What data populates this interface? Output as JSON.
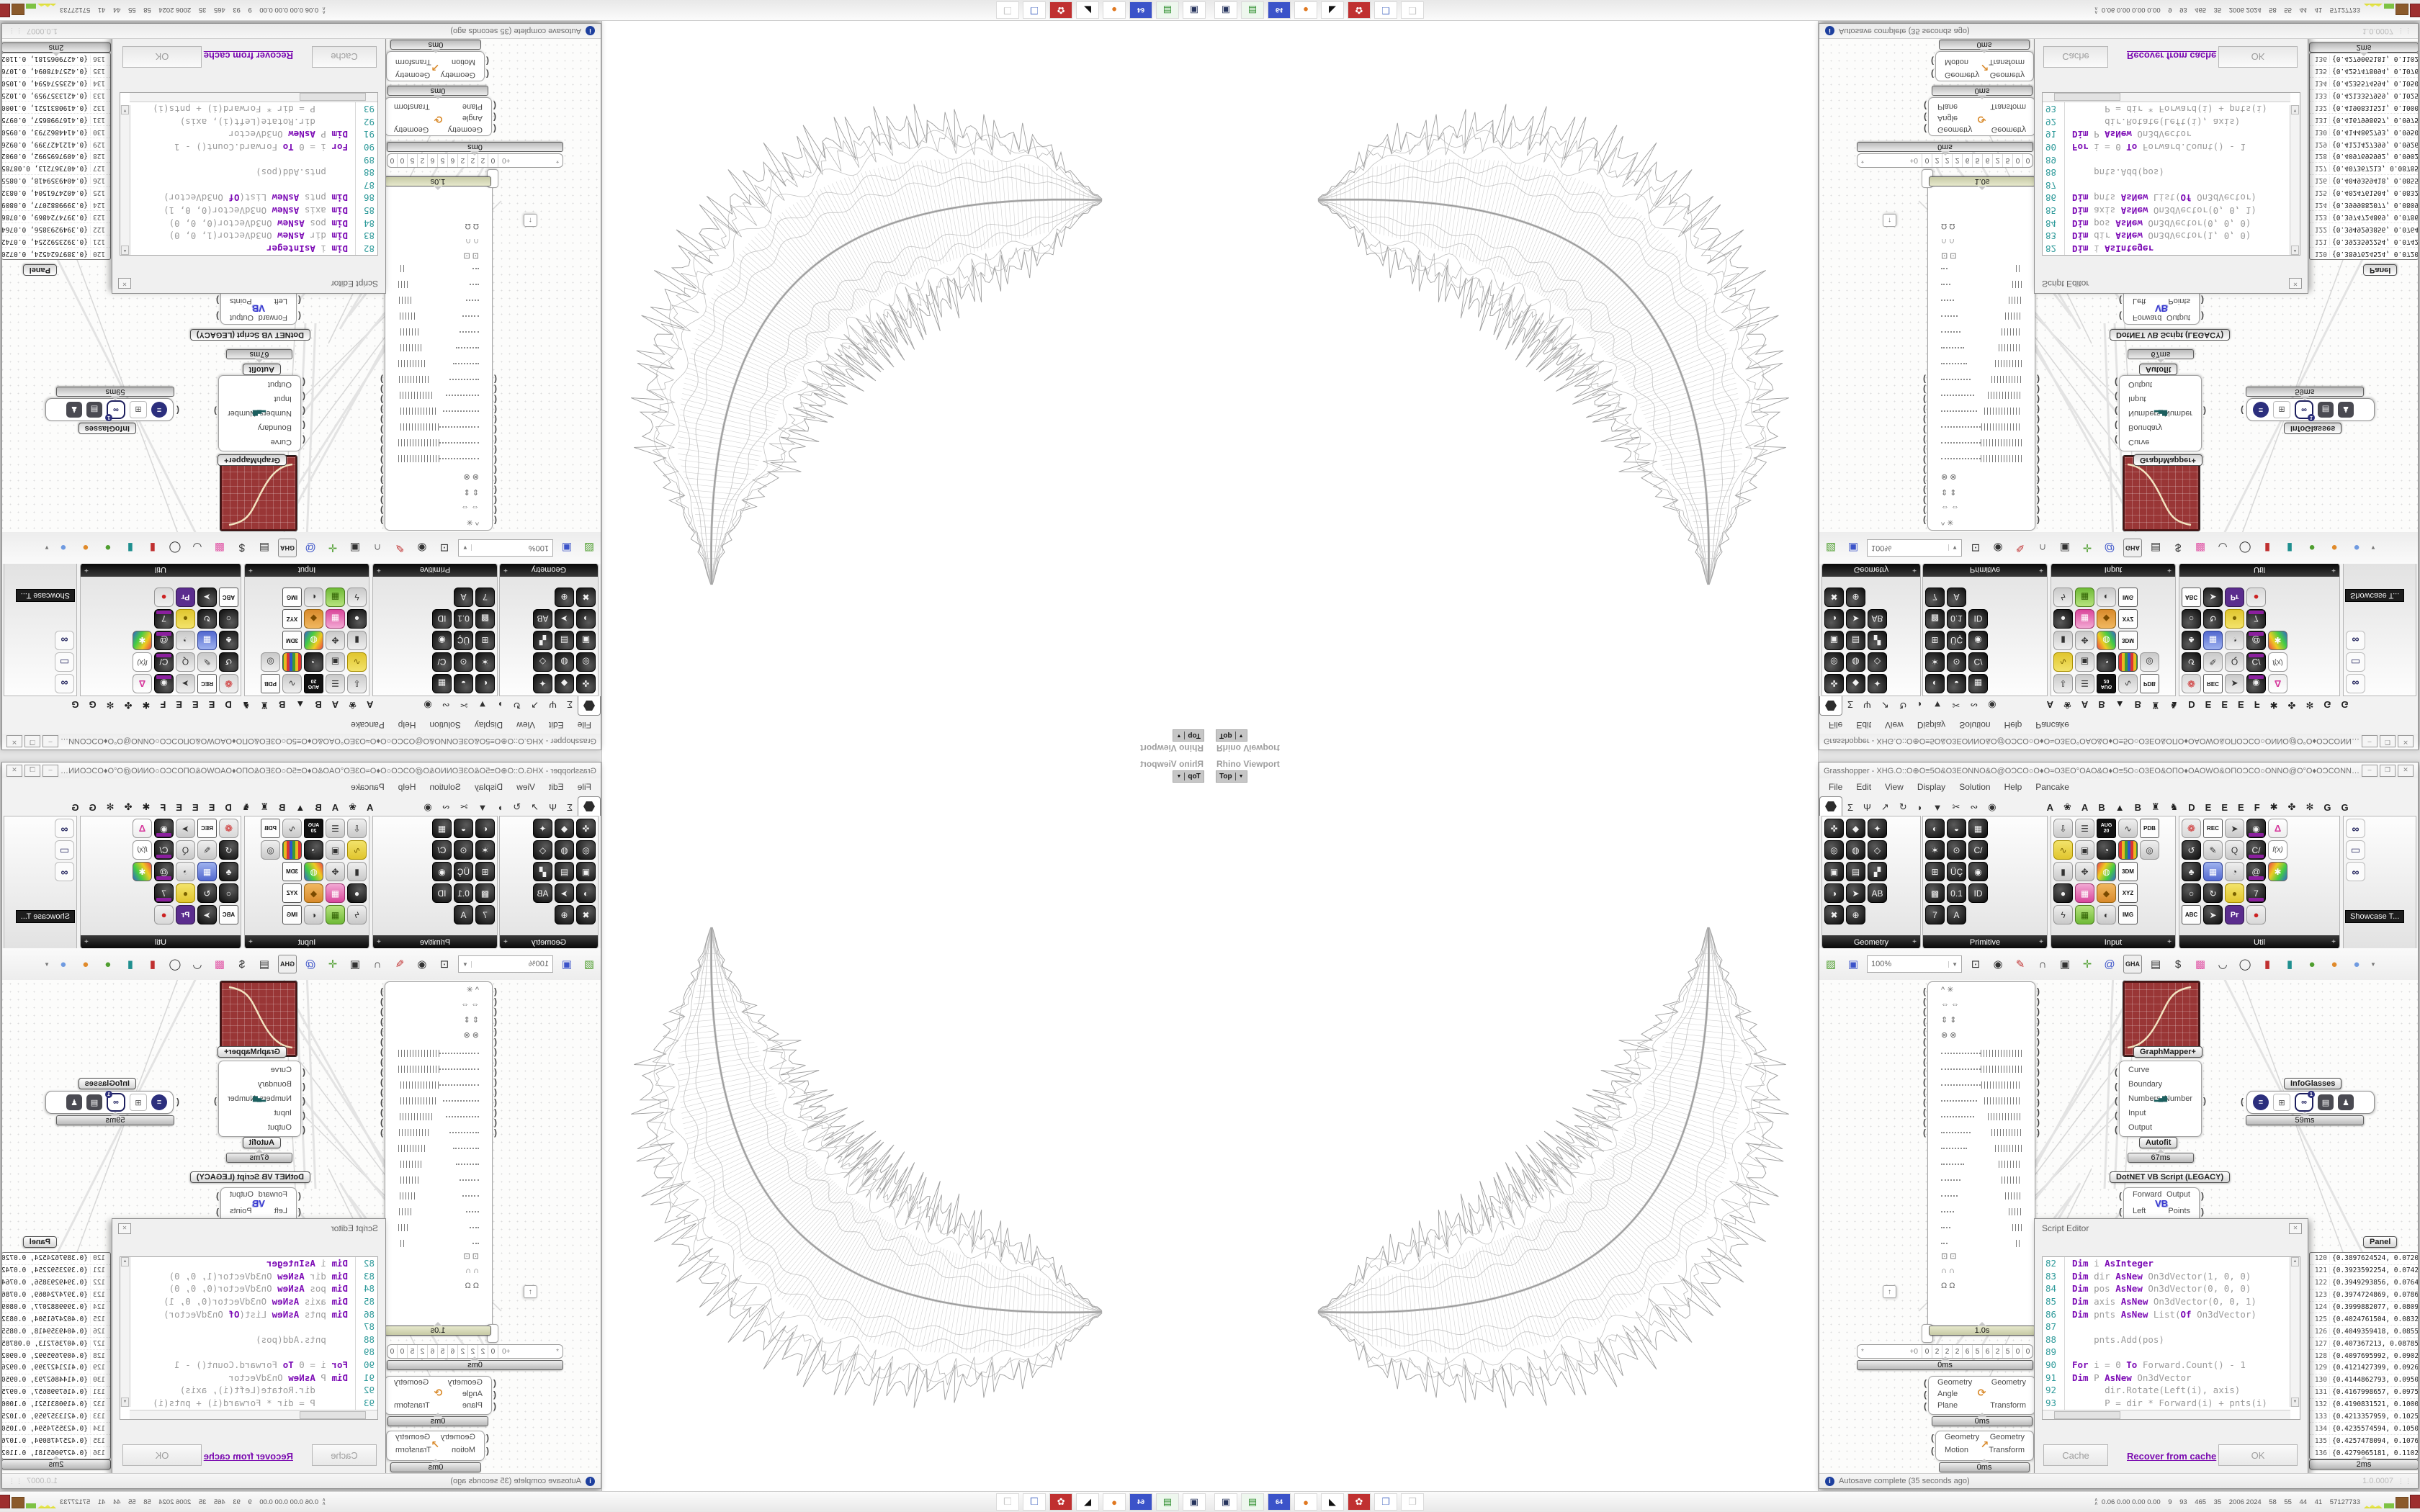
{
  "window": {
    "title": "Grasshopper - XHG.O::O⊕O≡5O&O3EONNO&O@OƆCO○O♦O≈O3EO°OAO&O♦O≡5O○O3EO&OΠO♦OAOWO&OΠOƆCO○ONNO@O°O♦OƆCONNOΠO÷O○O≡5OΠO°O=...",
    "minimize": "–",
    "maximize": "❐",
    "close": "✕"
  },
  "menu": [
    "File",
    "Edit",
    "View",
    "Display",
    "Solution",
    "Help",
    "Pancake"
  ],
  "tabs": {
    "left": [
      "Σ",
      "Ψ",
      "↗",
      "↻",
      "◗",
      "▼",
      "✂",
      "∾",
      "◉"
    ],
    "right": [
      "A",
      "❀",
      "A",
      "B",
      "▲",
      "B",
      "♜",
      "♞",
      "D",
      "E",
      "E",
      "E",
      "F",
      "✱",
      "✤",
      "✻",
      "G",
      "G"
    ]
  },
  "palettes": [
    {
      "name": "Geometry",
      "plus": "+",
      "icons": [
        {
          "n": "vector-icon",
          "g": "✜"
        },
        {
          "n": "point-icon",
          "g": "◎"
        },
        {
          "n": "box-icon",
          "g": "▣"
        },
        {
          "n": "sphere-icon",
          "g": "◑"
        },
        {
          "n": "xyz-icon",
          "g": "✖"
        },
        {
          "n": "curve-icon",
          "g": "◆"
        },
        {
          "n": "mesh-icon",
          "g": "◍"
        },
        {
          "n": "surface-icon",
          "g": "▤"
        },
        {
          "n": "arrow-icon",
          "g": "➤"
        },
        {
          "n": "circle-icon",
          "g": "⊕"
        },
        {
          "n": "spiral-icon",
          "g": "✦"
        },
        {
          "n": "plane-icon",
          "g": "◇"
        },
        {
          "n": "patch-icon",
          "g": "▞"
        },
        {
          "n": "abc-icon",
          "g": "AB"
        }
      ]
    },
    {
      "name": "Primitive",
      "plus": "+",
      "icons": [
        {
          "n": "half-icon",
          "g": "◐"
        },
        {
          "n": "burst-icon",
          "g": "✶"
        },
        {
          "n": "grid-icon",
          "g": "⊞"
        },
        {
          "n": "shade-icon",
          "g": "▩"
        },
        {
          "n": "seven-icon",
          "g": "7"
        },
        {
          "n": "swirl-icon",
          "g": "◒"
        },
        {
          "n": "clock-icon",
          "g": "⊙"
        },
        {
          "n": "uc-icon",
          "g": "ÜÇ"
        },
        {
          "n": "decimal-icon",
          "g": "0.1"
        },
        {
          "n": "text-icon",
          "g": "A"
        },
        {
          "n": "hatch-icon",
          "g": "▦"
        },
        {
          "n": "cpath-icon",
          "g": "C/"
        },
        {
          "n": "ball-icon",
          "g": "◉"
        },
        {
          "n": "id-icon",
          "g": "ID"
        }
      ]
    },
    {
      "name": "Input",
      "plus": "+",
      "icons": [
        {
          "n": "import-icon",
          "g": "⇩",
          "k": "gray"
        },
        {
          "n": "scribble-icon",
          "g": "∿",
          "k": "yellow"
        },
        {
          "n": "toggle-icon",
          "g": "▮",
          "k": "gray"
        },
        {
          "n": "knob-icon",
          "g": "●"
        },
        {
          "n": "bolt-icon",
          "g": "ϟ",
          "k": "gray"
        },
        {
          "n": "list-icon",
          "g": "☰",
          "k": "gray"
        },
        {
          "n": "panel-icon",
          "g": "▣",
          "k": "gray"
        },
        {
          "n": "axis-icon",
          "g": "✥",
          "k": "gray"
        },
        {
          "n": "gradient-icon",
          "g": "▦",
          "k": "pink"
        },
        {
          "n": "checker-icon",
          "g": "▦",
          "k": "green"
        },
        {
          "n": "calendar-icon",
          "g": "AUG\n20",
          "k": "cal"
        },
        {
          "n": "timer-icon",
          "g": "◔"
        },
        {
          "n": "colorwheel-icon",
          "g": "◍",
          "k": "rainbow"
        },
        {
          "n": "jar-icon",
          "g": "◆",
          "k": "orange"
        },
        {
          "n": "whiteball-icon",
          "g": "◐",
          "k": "gray"
        },
        {
          "n": "graph-icon",
          "g": "∿",
          "k": "gray"
        },
        {
          "n": "stripes-icon",
          "g": "▥",
          "k": "stripes"
        },
        {
          "n": "file-3dm-icon",
          "g": "3DM",
          "k": "chip"
        },
        {
          "n": "file-xyz-icon",
          "g": "XYZ",
          "k": "chip"
        },
        {
          "n": "file-img-icon",
          "g": "IMG",
          "k": "chip"
        },
        {
          "n": "file-pdb-icon",
          "g": "PDB",
          "k": "chip"
        },
        {
          "n": "speaker-icon",
          "g": "◎",
          "k": "gray"
        }
      ]
    },
    {
      "name": "Util",
      "plus": "+",
      "icons": [
        {
          "n": "cherry-icon",
          "g": "❁",
          "k": "red"
        },
        {
          "n": "loop-icon",
          "g": "↺"
        },
        {
          "n": "tree-icon",
          "g": "♣"
        },
        {
          "n": "ring-icon",
          "g": "○"
        },
        {
          "n": "abc-icon",
          "g": "ABC",
          "k": "chip"
        },
        {
          "n": "rec-icon",
          "g": "REC",
          "k": "chip"
        },
        {
          "n": "pencil-icon",
          "g": "✎",
          "k": "gray"
        },
        {
          "n": "keypad-icon",
          "g": "▦",
          "k": "blue"
        },
        {
          "n": "retime-icon",
          "g": "↻"
        },
        {
          "n": "fwd-icon",
          "g": "➤"
        },
        {
          "n": "fwd2-icon",
          "g": "➤",
          "k": "gray"
        },
        {
          "n": "qdown-icon",
          "g": "Q",
          "k": "gray"
        },
        {
          "n": "qback-icon",
          "g": "◔",
          "k": "gray"
        },
        {
          "n": "egg-icon",
          "g": "●",
          "k": "yellow"
        },
        {
          "n": "premiere-icon",
          "g": "Pr",
          "k": "purple"
        },
        {
          "n": "ex1-icon",
          "g": "◉",
          "k": "ex"
        },
        {
          "n": "ex2-icon",
          "g": "C/",
          "k": "ex"
        },
        {
          "n": "ex3-icon",
          "g": "@",
          "k": "ex"
        },
        {
          "n": "ex4-icon",
          "g": "7",
          "k": "ex"
        },
        {
          "n": "sphere-icon",
          "g": "●",
          "k": "red"
        },
        {
          "n": "flask-icon",
          "g": "Δ",
          "k": "pinkflask"
        },
        {
          "n": "fx-icon",
          "g": "f(x)",
          "k": "fx"
        },
        {
          "n": "palette-icon",
          "g": "✱",
          "k": "rainbow"
        }
      ]
    }
  ],
  "showcase": {
    "tooltip": "Showcase T...",
    "icons": [
      {
        "n": "goggles-icon",
        "g": "∞",
        "k": "outline"
      },
      {
        "n": "projector-icon",
        "g": "▭",
        "k": "outline"
      },
      {
        "n": "goggles2-icon",
        "g": "∞",
        "k": "outline"
      }
    ]
  },
  "toolbar": {
    "zoom": "100%",
    "icons": [
      {
        "n": "open-file-icon",
        "g": "▨",
        "k": "tgreen"
      },
      {
        "n": "save-file-icon",
        "g": "▣",
        "k": "tblue"
      }
    ],
    "icons2": [
      {
        "n": "zoom-extents-icon",
        "g": "⊡",
        "k": "tdark"
      },
      {
        "n": "preview-eye-icon",
        "g": "◉",
        "k": "tdark"
      },
      {
        "n": "sketch-pen-icon",
        "g": "✎",
        "k": "tred"
      },
      {
        "n": "headphones-icon",
        "g": "∩",
        "k": "tdark"
      },
      {
        "n": "camera-icon",
        "g": "▣",
        "k": "tdark"
      },
      {
        "n": "axes-icon",
        "g": "✛",
        "k": "tgreen"
      },
      {
        "n": "at-icon",
        "g": "@",
        "k": "tblue"
      },
      {
        "n": "gha-icon",
        "g": "GHA",
        "k": "tgha"
      },
      {
        "n": "notes-icon",
        "g": "▤",
        "k": "tdark"
      },
      {
        "n": "fee-search-icon",
        "g": "$",
        "k": "tdark"
      },
      {
        "n": "gift-icon",
        "g": "▩",
        "k": "tpink"
      },
      {
        "n": "bowl-icon",
        "g": "◡",
        "k": "tdark"
      },
      {
        "n": "ring-icon",
        "g": "◯",
        "k": "tdark"
      },
      {
        "n": "cylinder-red-icon",
        "g": "▮",
        "k": "tred"
      },
      {
        "n": "cylinder-teal-icon",
        "g": "▮",
        "k": "tteal"
      },
      {
        "n": "sphere-green-icon",
        "g": "●",
        "k": "tgreen"
      },
      {
        "n": "sphere-orange-icon",
        "g": "●",
        "k": "torange"
      },
      {
        "n": "sphere-blue-icon",
        "g": "●",
        "k": "tsphere"
      }
    ]
  },
  "list_node": {
    "top_syms": [
      "^ ✳",
      "⇔ ⇔",
      "⇕ ⇕",
      "⊗ ⊗"
    ],
    "bottom_syms": [
      "⊡ ⊡",
      "∩ ∩",
      "Ω Ω"
    ],
    "up_button": "↑"
  },
  "nodes": {
    "graph_mapper": {
      "label": "GraphMapper+"
    },
    "autofit": {
      "inputs": [
        "Curve",
        "Boundary",
        "Numbers",
        "Input",
        "Output"
      ],
      "output": "Number",
      "icon": "▂▄▆",
      "label": "Autofit",
      "time": "67ms"
    },
    "vb_script": {
      "label": "DotNET VB Script (LEGACY)",
      "icon": "VB",
      "in1": "Forward",
      "in2": "Left",
      "out1": "Output",
      "out2": "Points",
      "time": "152ms"
    },
    "rotate": {
      "in1": "Geometry",
      "in2": "Angle",
      "in3": "Plane",
      "out1": "Geometry",
      "out2": "Transform",
      "time": "0ms"
    },
    "move": {
      "in1": "Geometry",
      "in2": "Motion",
      "out1": "Geometry",
      "out2": "Transform",
      "time": "0ms"
    },
    "delay": {
      "time": "1.0s"
    },
    "slider": {
      "star": "*",
      "prefix": "+0",
      "digits": [
        "0",
        "2",
        "2",
        "2",
        "6",
        "5",
        "6",
        "2",
        "5",
        "0",
        "0"
      ],
      "time": "0ms"
    },
    "infoglasses": {
      "label": "InfoGlasses",
      "time": "59ms",
      "icons": [
        {
          "g": "≡",
          "k": ""
        },
        {
          "g": "⊞",
          "k": "flat"
        },
        {
          "g": "∞",
          "k": "gog"
        },
        {
          "g": "▤",
          "k": "dgray"
        },
        {
          "g": "♟",
          "k": "dgray"
        }
      ]
    }
  },
  "panel": {
    "label": "Panel",
    "time": "2ms",
    "rows": [
      {
        "i": "120",
        "v": "{0.3897624524, 0.072094062, 0.0}"
      },
      {
        "i": "121",
        "v": "{0.3923592254, 0.0742527514, 0.0}"
      },
      {
        "i": "122",
        "v": "{0.3949293856, 0.0764430823, 0.0}"
      },
      {
        "i": "123",
        "v": "{0.3974724869, 0.0786647267, 0.0}"
      },
      {
        "i": "124",
        "v": "{0.3999882077, 0.0809173516, 0.0}"
      },
      {
        "i": "125",
        "v": "{0.4024761504, 0.0832006192, 0.0}"
      },
      {
        "i": "126",
        "v": "{0.4049359418, 0.085514187, 0.0}"
      },
      {
        "i": "127",
        "v": "{0.407367213, 0.087857708, 0.0}"
      },
      {
        "i": "128",
        "v": "{0.4097695992, 0.0902308305, 0.0}"
      },
      {
        "i": "129",
        "v": "{0.4121427399, 0.0926331987, 0.0}"
      },
      {
        "i": "130",
        "v": "{0.4144862793, 0.0950644521, 0.0}"
      },
      {
        "i": "131",
        "v": "{0.4167998657, 0.0975242261, 0.0}"
      },
      {
        "i": "132",
        "v": "{0.4190831521, 0.1000121516, 0.0}"
      },
      {
        "i": "133",
        "v": "{0.4213357959, 0.1025278554, 0.0}"
      },
      {
        "i": "134",
        "v": "{0.4235574594, 0.1050709601, 0.0}"
      },
      {
        "i": "135",
        "v": "{0.4257478094, 0.1076410839, 0.0}"
      },
      {
        "i": "136",
        "v": "{0.4279065181, 0.1102378409, 0.0}"
      },
      {
        "i": "137",
        "v": "{0.4300332629, 0.1129608404, 0.0}"
      }
    ]
  },
  "script_editor": {
    "title": "Script Editor",
    "close": "✕",
    "lines": [
      {
        "n": "82",
        "t": "    Dim i As Integer"
      },
      {
        "n": "83",
        "t": "    Dim dir As New On3dVector(1, 0, 0)"
      },
      {
        "n": "84",
        "t": "    Dim pos As New On3dVector(0, 0, 0)"
      },
      {
        "n": "85",
        "t": "    Dim axis As New On3dVector(0, 0, 1)"
      },
      {
        "n": "86",
        "t": "    Dim pnts As New List(Of On3dVector)"
      },
      {
        "n": "87",
        "t": ""
      },
      {
        "n": "88",
        "t": "    pnts.Add(pos)"
      },
      {
        "n": "89",
        "t": ""
      },
      {
        "n": "90",
        "t": "    For i = 0 To Forward.Count() - 1"
      },
      {
        "n": "91",
        "t": "      Dim P As New On3dVector"
      },
      {
        "n": "92",
        "t": "      dir.Rotate(Left(i), axis)"
      },
      {
        "n": "93",
        "t": "      P = dir * Forward(i) + pnts(i)"
      },
      {
        "n": "94",
        "t": "      pnts.Add(P)"
      },
      {
        "n": "95",
        "t": "    Next"
      },
      {
        "n": "96",
        "t": ""
      },
      {
        "n": "97",
        "t": "    Points = pnts"
      }
    ],
    "cache_label": "Cache",
    "recover_label": "Recover from cache",
    "ok_label": "OK"
  },
  "status_bar": {
    "text": "Autosave complete (35 seconds ago)",
    "icon": "i",
    "version": "1.0.0007"
  },
  "viewport": {
    "label": "Rhino Viewport",
    "tab": "Top"
  },
  "taskbar": {
    "icons": [
      {
        "n": "screenshot-app-icon",
        "g": "▣",
        "k": "navy"
      },
      {
        "n": "drive-app-icon",
        "g": "▤",
        "k": "green"
      },
      {
        "n": "floppy64-app-icon",
        "g": "64",
        "k": "blue"
      },
      {
        "n": "firefox-app-icon",
        "g": "●",
        "k": "orange"
      },
      {
        "n": "cat-app-icon",
        "g": "◣",
        "k": "bw"
      },
      {
        "n": "red-app-icon",
        "g": "✿",
        "k": "red"
      },
      {
        "n": "window-app-icon",
        "g": "❒",
        "k": "steel"
      },
      {
        "n": "ghost-app-icon",
        "g": "❒",
        "k": "ghost"
      }
    ],
    "stats": "0.06 0.00 0.00 0.00    9    93    465    35    2006 2024    58    55    44    41    57127733"
  },
  "colors": {
    "accent_red_node": "#993636",
    "keyword_purple": "#7c0bb5",
    "line_number_teal": "#2e9a9a"
  }
}
